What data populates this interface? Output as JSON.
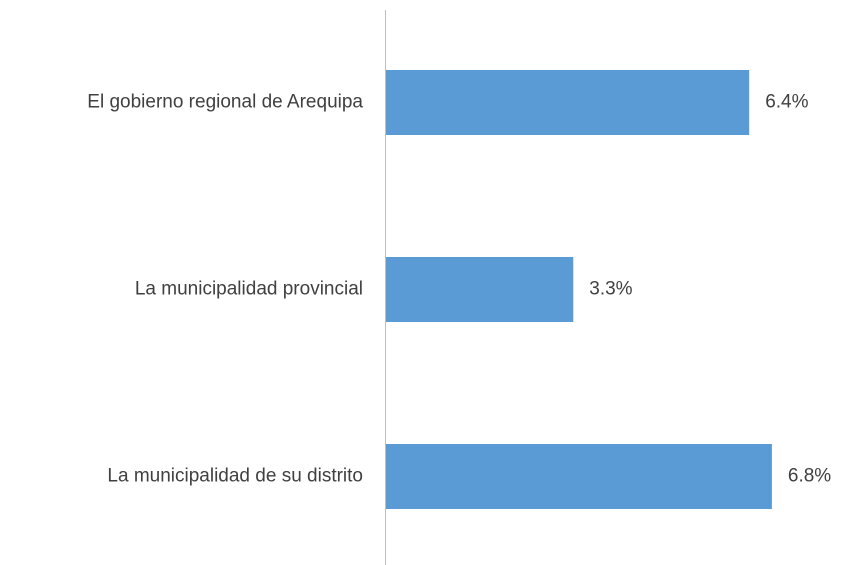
{
  "chart_data": {
    "type": "bar",
    "orientation": "horizontal",
    "categories": [
      "El gobierno regional de Arequipa",
      "La municipalidad provincial",
      "La municipalidad de su distrito"
    ],
    "values": [
      6.4,
      3.3,
      6.8
    ],
    "value_labels": [
      "6.4%",
      "3.3%",
      "6.8%"
    ],
    "color": "#5b9bd5"
  }
}
